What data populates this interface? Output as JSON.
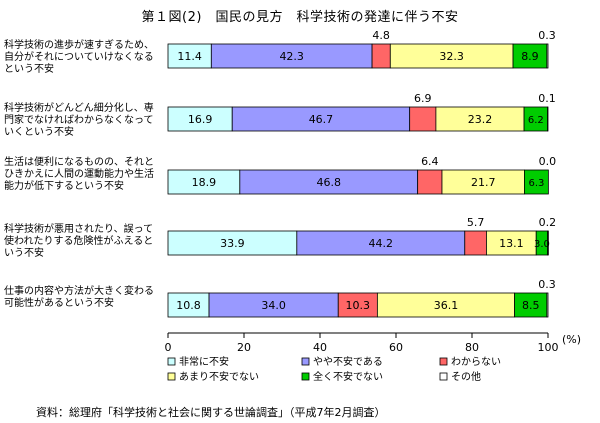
{
  "chart_data": {
    "type": "bar",
    "orientation": "horizontal",
    "stacked": true,
    "title": "第１図(2)　国民の見方　科学技術の発達に伴う不安",
    "categories": [
      "科学技術の進歩が速すぎるため、自分がそれについていけなくなるという不安",
      "科学技術がどんどん細分化し、専門家でなければわからなくなっていくという不安",
      "生活は便利になるものの、それとひきかえに人間の運動能力や生活能力が低下するという不安",
      "科学技術が悪用されたり、誤って使われたりする危険性がふえるという不安",
      "仕事の内容や方法が大きく変わる可能性があるという不安"
    ],
    "series": [
      {
        "name": "非常に不安",
        "color": "#ccffff",
        "values": [
          11.4,
          16.9,
          18.9,
          33.9,
          10.8
        ]
      },
      {
        "name": "やや不安である",
        "color": "#9999ff",
        "values": [
          42.3,
          46.7,
          46.8,
          44.2,
          34.0
        ]
      },
      {
        "name": "わからない",
        "color": "#ff6666",
        "values": [
          4.8,
          6.9,
          6.4,
          5.7,
          10.3
        ]
      },
      {
        "name": "あまり不安でない",
        "color": "#ffff99",
        "values": [
          32.3,
          23.2,
          21.7,
          13.1,
          36.1
        ]
      },
      {
        "name": "全く不安でない",
        "color": "#00cc00",
        "values": [
          8.9,
          6.2,
          6.3,
          3.0,
          8.5
        ]
      },
      {
        "name": "その他",
        "color": "#ffffff",
        "values": [
          0.3,
          0.1,
          0.0,
          0.2,
          0.3
        ]
      }
    ],
    "xlim": [
      0,
      100
    ],
    "xticks": [
      "0",
      "20",
      "40",
      "60",
      "80",
      "100"
    ],
    "xunit": "(%)",
    "grid": false,
    "legend_position": "bottom"
  },
  "source": "資料：総理府「科学技術と社会に関する世論調査」（平成7年2月調査）"
}
